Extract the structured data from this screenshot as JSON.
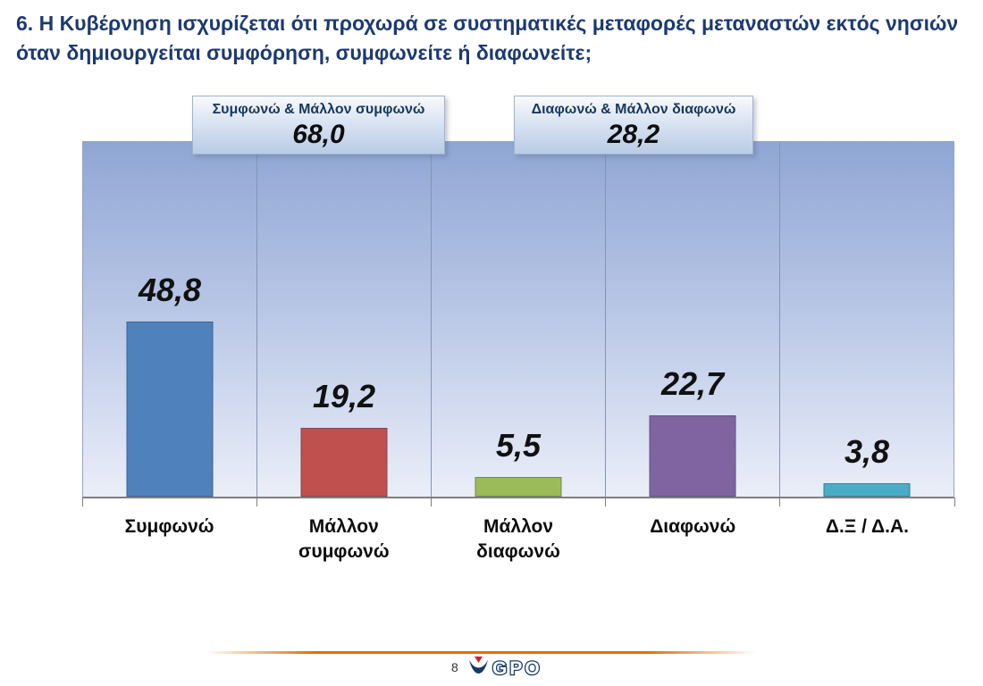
{
  "slide": {
    "title": "6. Η Κυβέρνηση ισχυρίζεται ότι προχωρά σε συστηματικές μεταφορές μεταναστών εκτός νησιών όταν δημιουργείται συμφόρηση, συμφωνείτε ή διαφωνείτε;",
    "page_number": "8",
    "logo_text": "GPO"
  },
  "chart_data": {
    "type": "bar",
    "title": "6. Η Κυβέρνηση ισχυρίζεται ότι προχωρά σε συστηματικές μεταφορές μεταναστών εκτός νησιών όταν δημιουργείται συμφόρηση, συμφωνείτε ή διαφωνείτε;",
    "categories": [
      "Συμφωνώ",
      "Μάλλον\nσυμφωνώ",
      "Μάλλον\nδιαφωνώ",
      "Διαφωνώ",
      "Δ.Ξ / Δ.Α."
    ],
    "values": [
      48.8,
      19.2,
      5.5,
      22.7,
      3.8
    ],
    "value_labels": [
      "48,8",
      "19,2",
      "5,5",
      "22,7",
      "3,8"
    ],
    "bar_colors": [
      "#4f81bd",
      "#c0504d",
      "#9bbb59",
      "#8064a2",
      "#4bacc6"
    ],
    "xlabel": "",
    "ylabel": "",
    "ylim": [
      0,
      99
    ],
    "grid": "vertical-category-separators",
    "legend_position": "none",
    "annotations": [
      {
        "label": "Συμφωνώ & Μάλλον συμφωνώ",
        "value": "68,0",
        "value_numeric": 68.0
      },
      {
        "label": "Διαφωνώ & Μάλλον διαφωνώ",
        "value": "28,2",
        "value_numeric": 28.2
      }
    ],
    "accent_colors": {
      "title_text": "#1c3a70",
      "plot_bg_top": "#8fa6d4",
      "plot_bg_bottom": "#eaeef8",
      "footer_rule": "#e36c09",
      "logo_navy": "#17386e",
      "logo_red": "#cf1f2e"
    }
  }
}
